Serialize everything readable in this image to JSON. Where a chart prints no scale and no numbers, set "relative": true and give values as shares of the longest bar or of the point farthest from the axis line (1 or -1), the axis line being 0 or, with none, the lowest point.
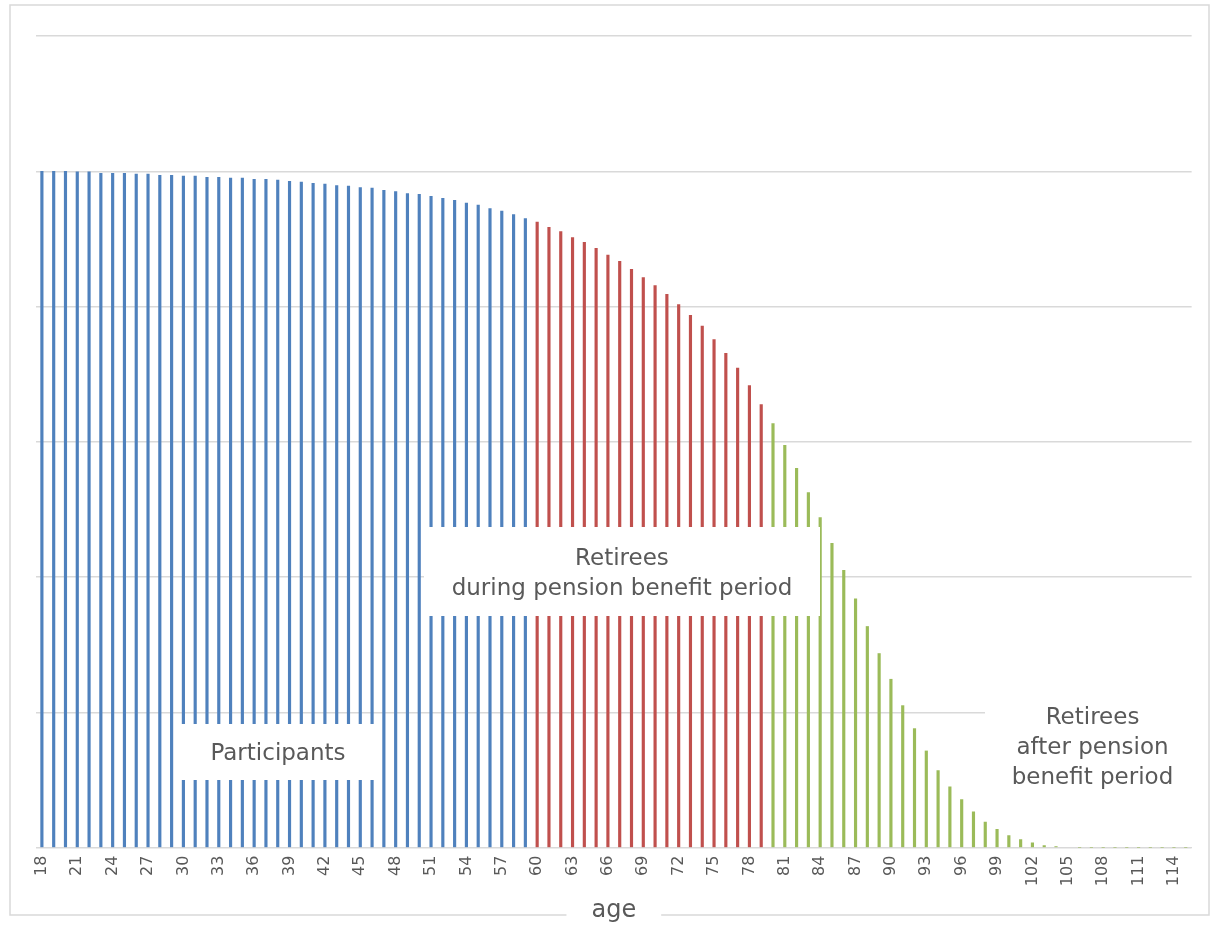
{
  "chart_data": {
    "type": "bar",
    "relative": true,
    "grid": "y",
    "xlabel": "age",
    "categories": [
      "18",
      null,
      null,
      "21",
      null,
      null,
      "24",
      null,
      null,
      "27",
      null,
      null,
      "30",
      null,
      null,
      "33",
      null,
      null,
      "36",
      null,
      null,
      "39",
      null,
      null,
      "42",
      null,
      null,
      "45",
      null,
      null,
      "48",
      null,
      null,
      "51",
      null,
      null,
      "54",
      null,
      null,
      "57",
      null,
      null,
      "60",
      null,
      null,
      "63",
      null,
      null,
      "66",
      null,
      null,
      "69",
      null,
      null,
      "72",
      null,
      null,
      "75",
      null,
      null,
      "78",
      null,
      null,
      "81",
      null,
      null,
      "84",
      null,
      null,
      "87",
      null,
      null,
      "90",
      null,
      null,
      "93",
      null,
      null,
      "96",
      null,
      null,
      "99",
      null,
      null,
      "102",
      null,
      null,
      "105",
      null,
      null,
      "108",
      null,
      null,
      "111",
      null,
      null,
      "114",
      null
    ],
    "values": [
      1.0,
      1.0,
      1.0,
      0.999,
      0.999,
      0.997,
      0.997,
      0.997,
      0.996,
      0.996,
      0.994,
      0.994,
      0.993,
      0.993,
      0.991,
      0.991,
      0.99,
      0.99,
      0.988,
      0.988,
      0.987,
      0.985,
      0.984,
      0.982,
      0.981,
      0.979,
      0.978,
      0.976,
      0.975,
      0.972,
      0.97,
      0.967,
      0.966,
      0.963,
      0.96,
      0.957,
      0.953,
      0.95,
      0.945,
      0.941,
      0.936,
      0.93,
      0.925,
      0.917,
      0.911,
      0.902,
      0.895,
      0.886,
      0.876,
      0.867,
      0.855,
      0.843,
      0.831,
      0.818,
      0.803,
      0.787,
      0.771,
      0.751,
      0.731,
      0.709,
      0.683,
      0.655,
      0.627,
      0.595,
      0.561,
      0.525,
      0.488,
      0.45,
      0.41,
      0.368,
      0.327,
      0.287,
      0.249,
      0.21,
      0.176,
      0.143,
      0.114,
      0.09,
      0.071,
      0.053,
      0.038,
      0.027,
      0.018,
      0.012,
      0.007,
      0.003,
      0.0015,
      null,
      0,
      0,
      0,
      0,
      0,
      0,
      0,
      0,
      0,
      0
    ],
    "colors": [
      "#4f81bd",
      "#4f81bd",
      "#4f81bd",
      "#4f81bd",
      "#4f81bd",
      "#4f81bd",
      "#4f81bd",
      "#4f81bd",
      "#4f81bd",
      "#4f81bd",
      "#4f81bd",
      "#4f81bd",
      "#4f81bd",
      "#4f81bd",
      "#4f81bd",
      "#4f81bd",
      "#4f81bd",
      "#4f81bd",
      "#4f81bd",
      "#4f81bd",
      "#4f81bd",
      "#4f81bd",
      "#4f81bd",
      "#4f81bd",
      "#4f81bd",
      "#4f81bd",
      "#4f81bd",
      "#4f81bd",
      "#4f81bd",
      "#4f81bd",
      "#4f81bd",
      "#4f81bd",
      "#4f81bd",
      "#4f81bd",
      "#4f81bd",
      "#4f81bd",
      "#4f81bd",
      "#4f81bd",
      "#4f81bd",
      "#4f81bd",
      "#4f81bd",
      "#4f81bd",
      "#c0504d",
      "#c0504d",
      "#c0504d",
      "#c0504d",
      "#c0504d",
      "#c0504d",
      "#c0504d",
      "#c0504d",
      "#c0504d",
      "#c0504d",
      "#c0504d",
      "#c0504d",
      "#c0504d",
      "#c0504d",
      "#c0504d",
      "#c0504d",
      "#c0504d",
      "#c0504d",
      "#c0504d",
      "#c0504d",
      "#9bbb59",
      "#9bbb59",
      "#9bbb59",
      "#9bbb59",
      "#9bbb59",
      "#9bbb59",
      "#9bbb59",
      "#9bbb59",
      "#9bbb59",
      "#9bbb59",
      "#9bbb59",
      "#9bbb59",
      "#9bbb59",
      "#9bbb59",
      "#9bbb59",
      "#9bbb59",
      "#9bbb59",
      "#9bbb59",
      "#9bbb59",
      "#9bbb59",
      "#9bbb59",
      "#9bbb59",
      "#9bbb59",
      "#9bbb59",
      "#9bbb59",
      "#9bbb59",
      "#9bbb59",
      "#9bbb59",
      "#9bbb59",
      "#9bbb59",
      "#9bbb59",
      "#9bbb59",
      "#9bbb59",
      "#9bbb59",
      "#9bbb59",
      "#9bbb59"
    ],
    "annotations": [
      "Participants",
      "Retirees\nduring pension benefit period",
      "Retirees\nafter pension benefit period"
    ]
  }
}
